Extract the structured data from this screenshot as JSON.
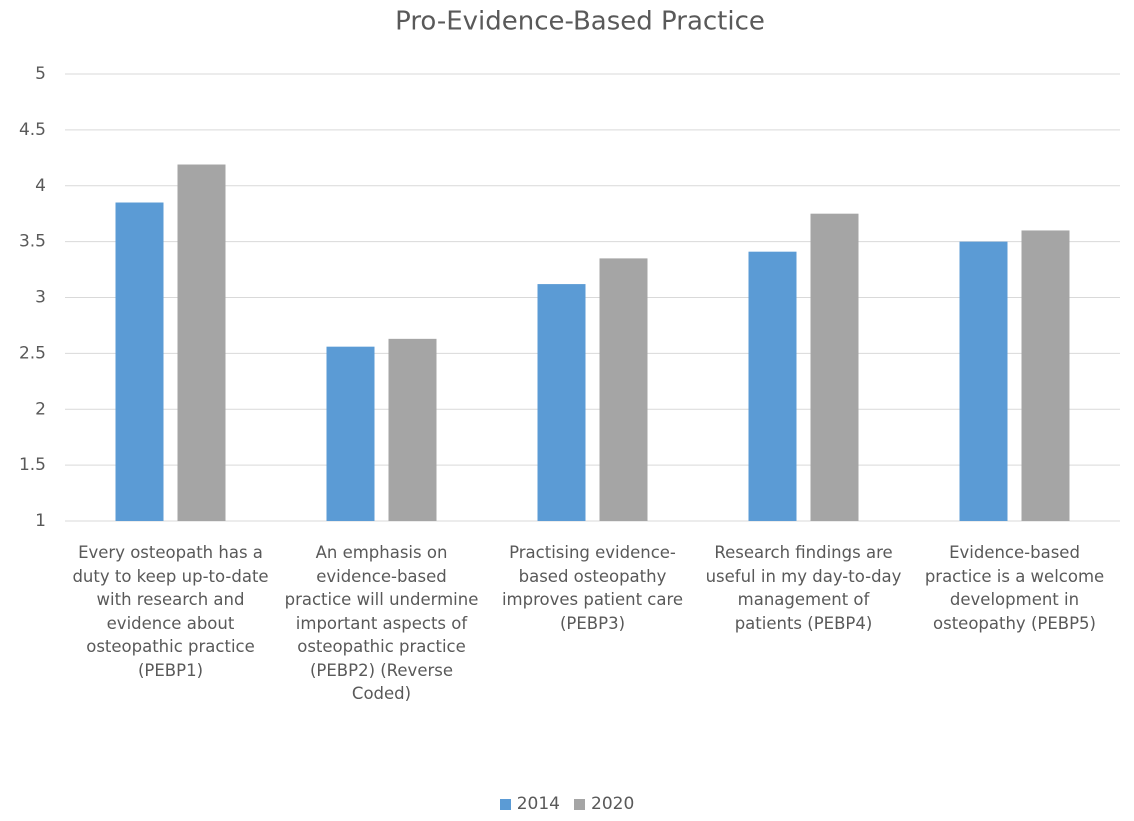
{
  "chart_data": {
    "type": "bar",
    "title": "Pro-Evidence-Based Practice",
    "categories": [
      "Every osteopath has a duty to keep up-to-date with research and evidence about osteopathic practice (PEBP1)",
      "An emphasis on evidence-based practice will undermine important aspects of osteopathic practice (PEBP2) (Reverse Coded)",
      "Practising evidence-based osteopathy improves patient care (PEBP3)",
      "Research findings are useful in my day-to-day management of patients (PEBP4)",
      "Evidence-based practice is a welcome development in osteopathy (PEBP5)"
    ],
    "series": [
      {
        "name": "2014",
        "color": "#5b9bd5",
        "values": [
          3.85,
          2.56,
          3.12,
          3.41,
          3.5
        ]
      },
      {
        "name": "2020",
        "color": "#a5a5a5",
        "values": [
          4.19,
          2.63,
          3.35,
          3.75,
          3.6
        ]
      }
    ],
    "ylim": [
      1,
      5
    ],
    "yticks": [
      1,
      1.5,
      2,
      2.5,
      3,
      3.5,
      4,
      4.5,
      5
    ],
    "grid": true,
    "legend": "bottom"
  }
}
